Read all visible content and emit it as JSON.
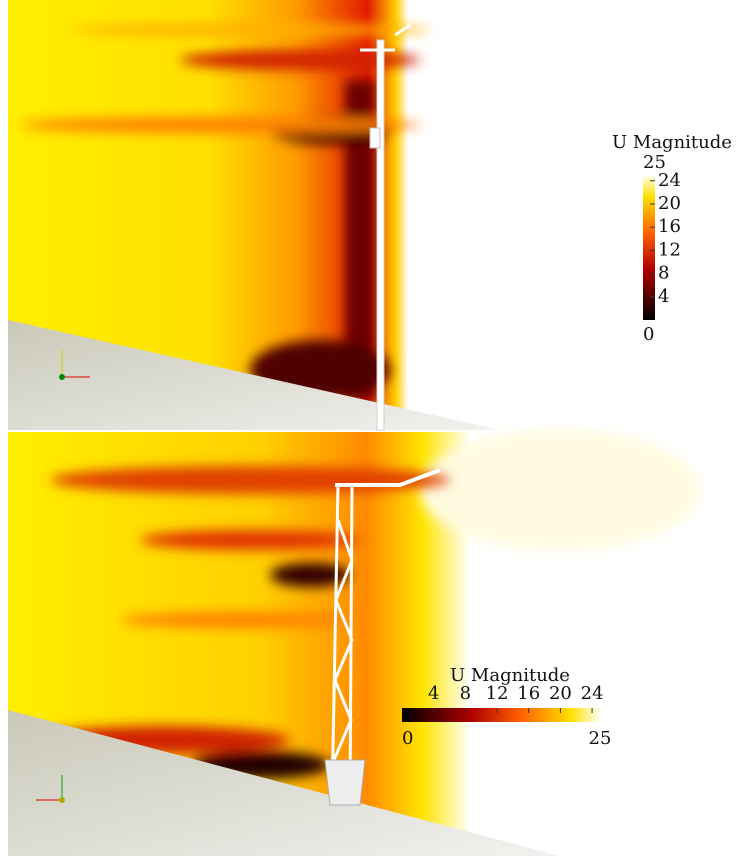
{
  "panels": [
    {
      "colorbar": {
        "title": "U Magnitude",
        "orientation": "vertical",
        "range": [
          0,
          25
        ],
        "ticks": [
          4,
          8,
          12,
          16,
          20,
          24
        ]
      }
    },
    {
      "colorbar": {
        "title": "U Magnitude",
        "orientation": "horizontal",
        "range": [
          0,
          25
        ],
        "ticks": [
          4,
          8,
          12,
          16,
          20,
          24
        ]
      }
    }
  ]
}
